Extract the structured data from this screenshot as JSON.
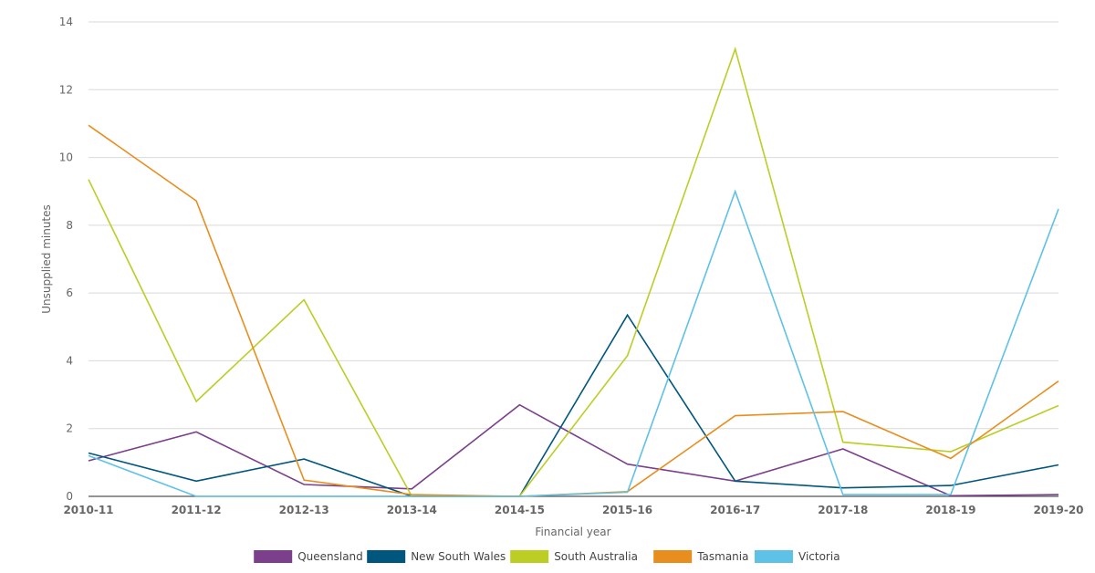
{
  "chart_data": {
    "type": "line",
    "xlabel": "Financial year",
    "ylabel": "Unsupplied minutes",
    "ylim": [
      0,
      14
    ],
    "yticks": [
      0,
      2,
      4,
      6,
      8,
      10,
      12,
      14
    ],
    "grid": true,
    "legend_position": "bottom",
    "categories": [
      "2010-11",
      "2011-12",
      "2012-13",
      "2013-14",
      "2014-15",
      "2015-16",
      "2016-17",
      "2017-18",
      "2018-19",
      "2019-20"
    ],
    "series": [
      {
        "name": "Queensland",
        "color": "#7b3f8c",
        "values": [
          1.05,
          1.9,
          0.35,
          0.22,
          2.7,
          0.95,
          0.45,
          1.4,
          0.02,
          0.05
        ]
      },
      {
        "name": "New South Wales",
        "color": "#00567d",
        "values": [
          1.28,
          0.45,
          1.1,
          0.0,
          0.0,
          5.35,
          0.45,
          0.25,
          0.32,
          0.93
        ]
      },
      {
        "name": "South Australia",
        "color": "#bccd24",
        "values": [
          9.35,
          2.8,
          5.8,
          0.0,
          0.0,
          4.15,
          13.2,
          1.6,
          1.32,
          2.68
        ]
      },
      {
        "name": "Tasmania",
        "color": "#e88e1e",
        "values": [
          10.95,
          8.72,
          0.48,
          0.05,
          0.0,
          0.14,
          2.38,
          2.5,
          1.12,
          3.4
        ]
      },
      {
        "name": "Victoria",
        "color": "#5ec1e6",
        "values": [
          1.2,
          0.0,
          0.0,
          0.0,
          0.0,
          0.12,
          9.0,
          0.05,
          0.05,
          8.48
        ]
      }
    ]
  }
}
